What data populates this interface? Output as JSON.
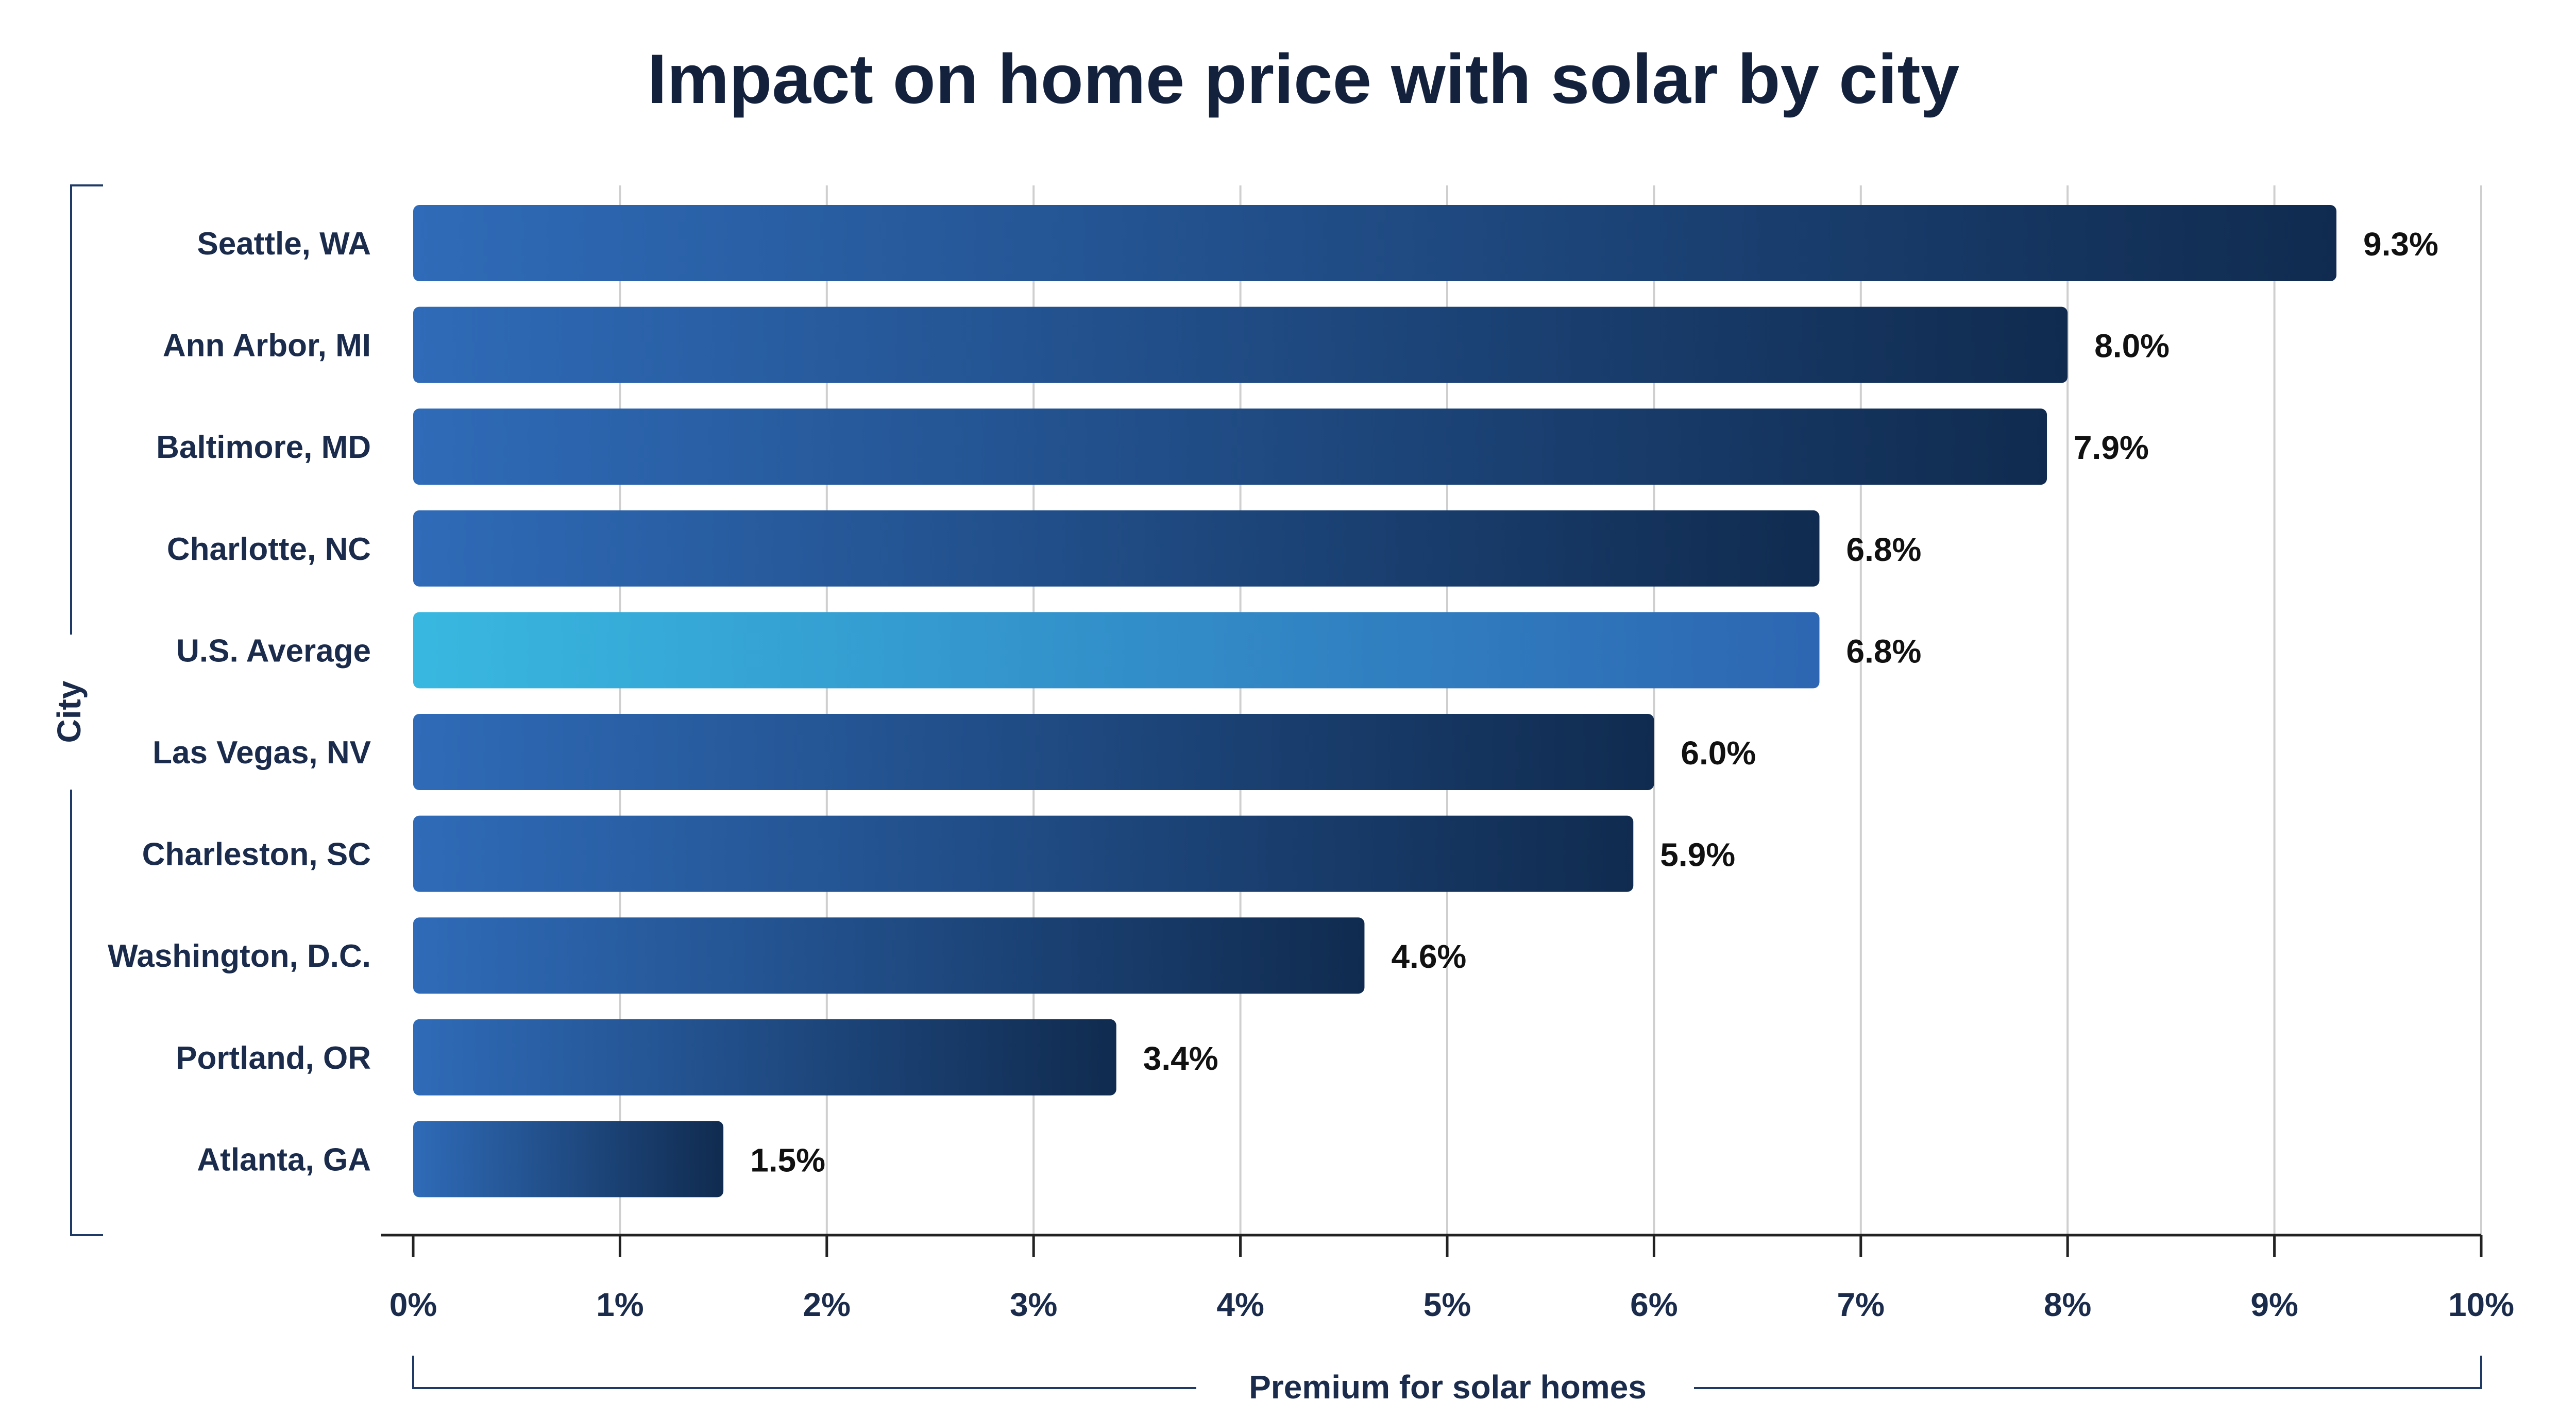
{
  "chart_data": {
    "type": "bar",
    "orientation": "horizontal",
    "title": "Impact on home price with solar by city",
    "ylabel": "City",
    "xlabel": "Premium for solar homes",
    "xlim": [
      0,
      10
    ],
    "grid": true,
    "tick_values": [
      0,
      1,
      2,
      3,
      4,
      5,
      6,
      7,
      8,
      9,
      10
    ],
    "tick_labels": [
      "0%",
      "1%",
      "2%",
      "3%",
      "4%",
      "5%",
      "6%",
      "7%",
      "8%",
      "9%",
      "10%"
    ],
    "categories": [
      "Seattle, WA",
      "Ann Arbor, MI",
      "Baltimore, MD",
      "Charlotte, NC",
      "U.S. Average",
      "Las Vegas, NV",
      "Charleston, SC",
      "Washington, D.C.",
      "Portland, OR",
      "Atlanta, GA"
    ],
    "values": [
      9.3,
      8.0,
      7.9,
      6.8,
      6.8,
      6.0,
      5.9,
      4.6,
      3.4,
      1.5
    ],
    "value_labels": [
      "9.3%",
      "8.0%",
      "7.9%",
      "6.8%",
      "6.8%",
      "6.0%",
      "5.9%",
      "4.6%",
      "3.4%",
      "1.5%"
    ],
    "highlight_category": "U.S. Average"
  },
  "colors": {
    "bar_start": "#2f6bb8",
    "bar_end": "#102b4f",
    "highlight_start": "#38b8e0",
    "highlight_end": "#2d66b2",
    "text": "#14213d",
    "axis": "#222222",
    "grid": "#cfcfcf",
    "bracket": "#1f3a66"
  }
}
